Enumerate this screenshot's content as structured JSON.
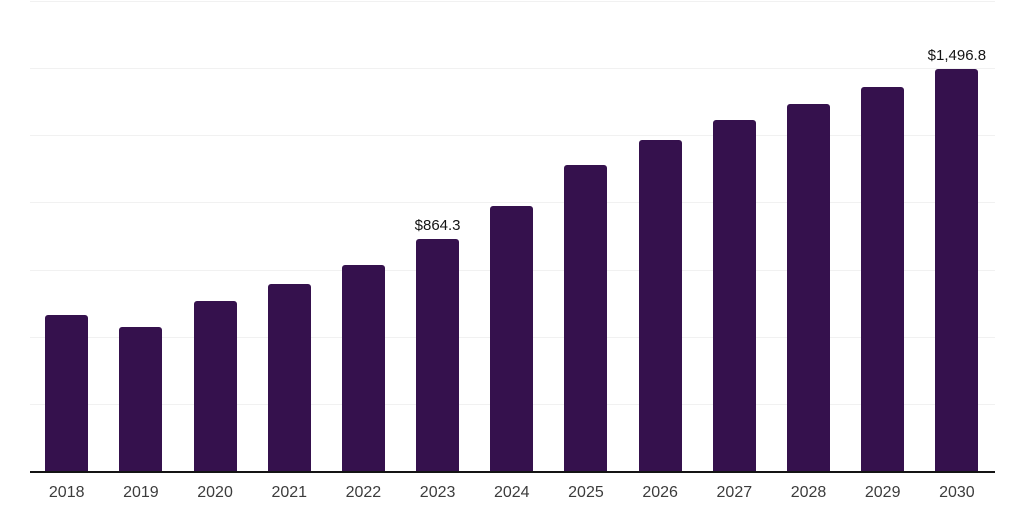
{
  "chart_data": {
    "type": "bar",
    "title": "",
    "xlabel": "",
    "ylabel": "",
    "categories": [
      "2018",
      "2019",
      "2020",
      "2021",
      "2022",
      "2023",
      "2024",
      "2025",
      "2026",
      "2027",
      "2028",
      "2029",
      "2030"
    ],
    "values": [
      580,
      536,
      632,
      695,
      766,
      864.3,
      986,
      1138,
      1232,
      1306,
      1365,
      1431,
      1496.8
    ],
    "point_labels": [
      "",
      "",
      "",
      "",
      "",
      "$864.3",
      "",
      "",
      "",
      "",
      "",
      "",
      "$1,496.8"
    ],
    "ylim": [
      0,
      1750
    ],
    "grid_step": 250,
    "grid_on": true,
    "legend": "none",
    "colors": {
      "bar": "#35114d",
      "gridline": "#f1f1f1",
      "axis_line": "#141414",
      "tick_label": "#3c3c3c",
      "value_label": "#141414",
      "background": "#ffffff"
    }
  }
}
